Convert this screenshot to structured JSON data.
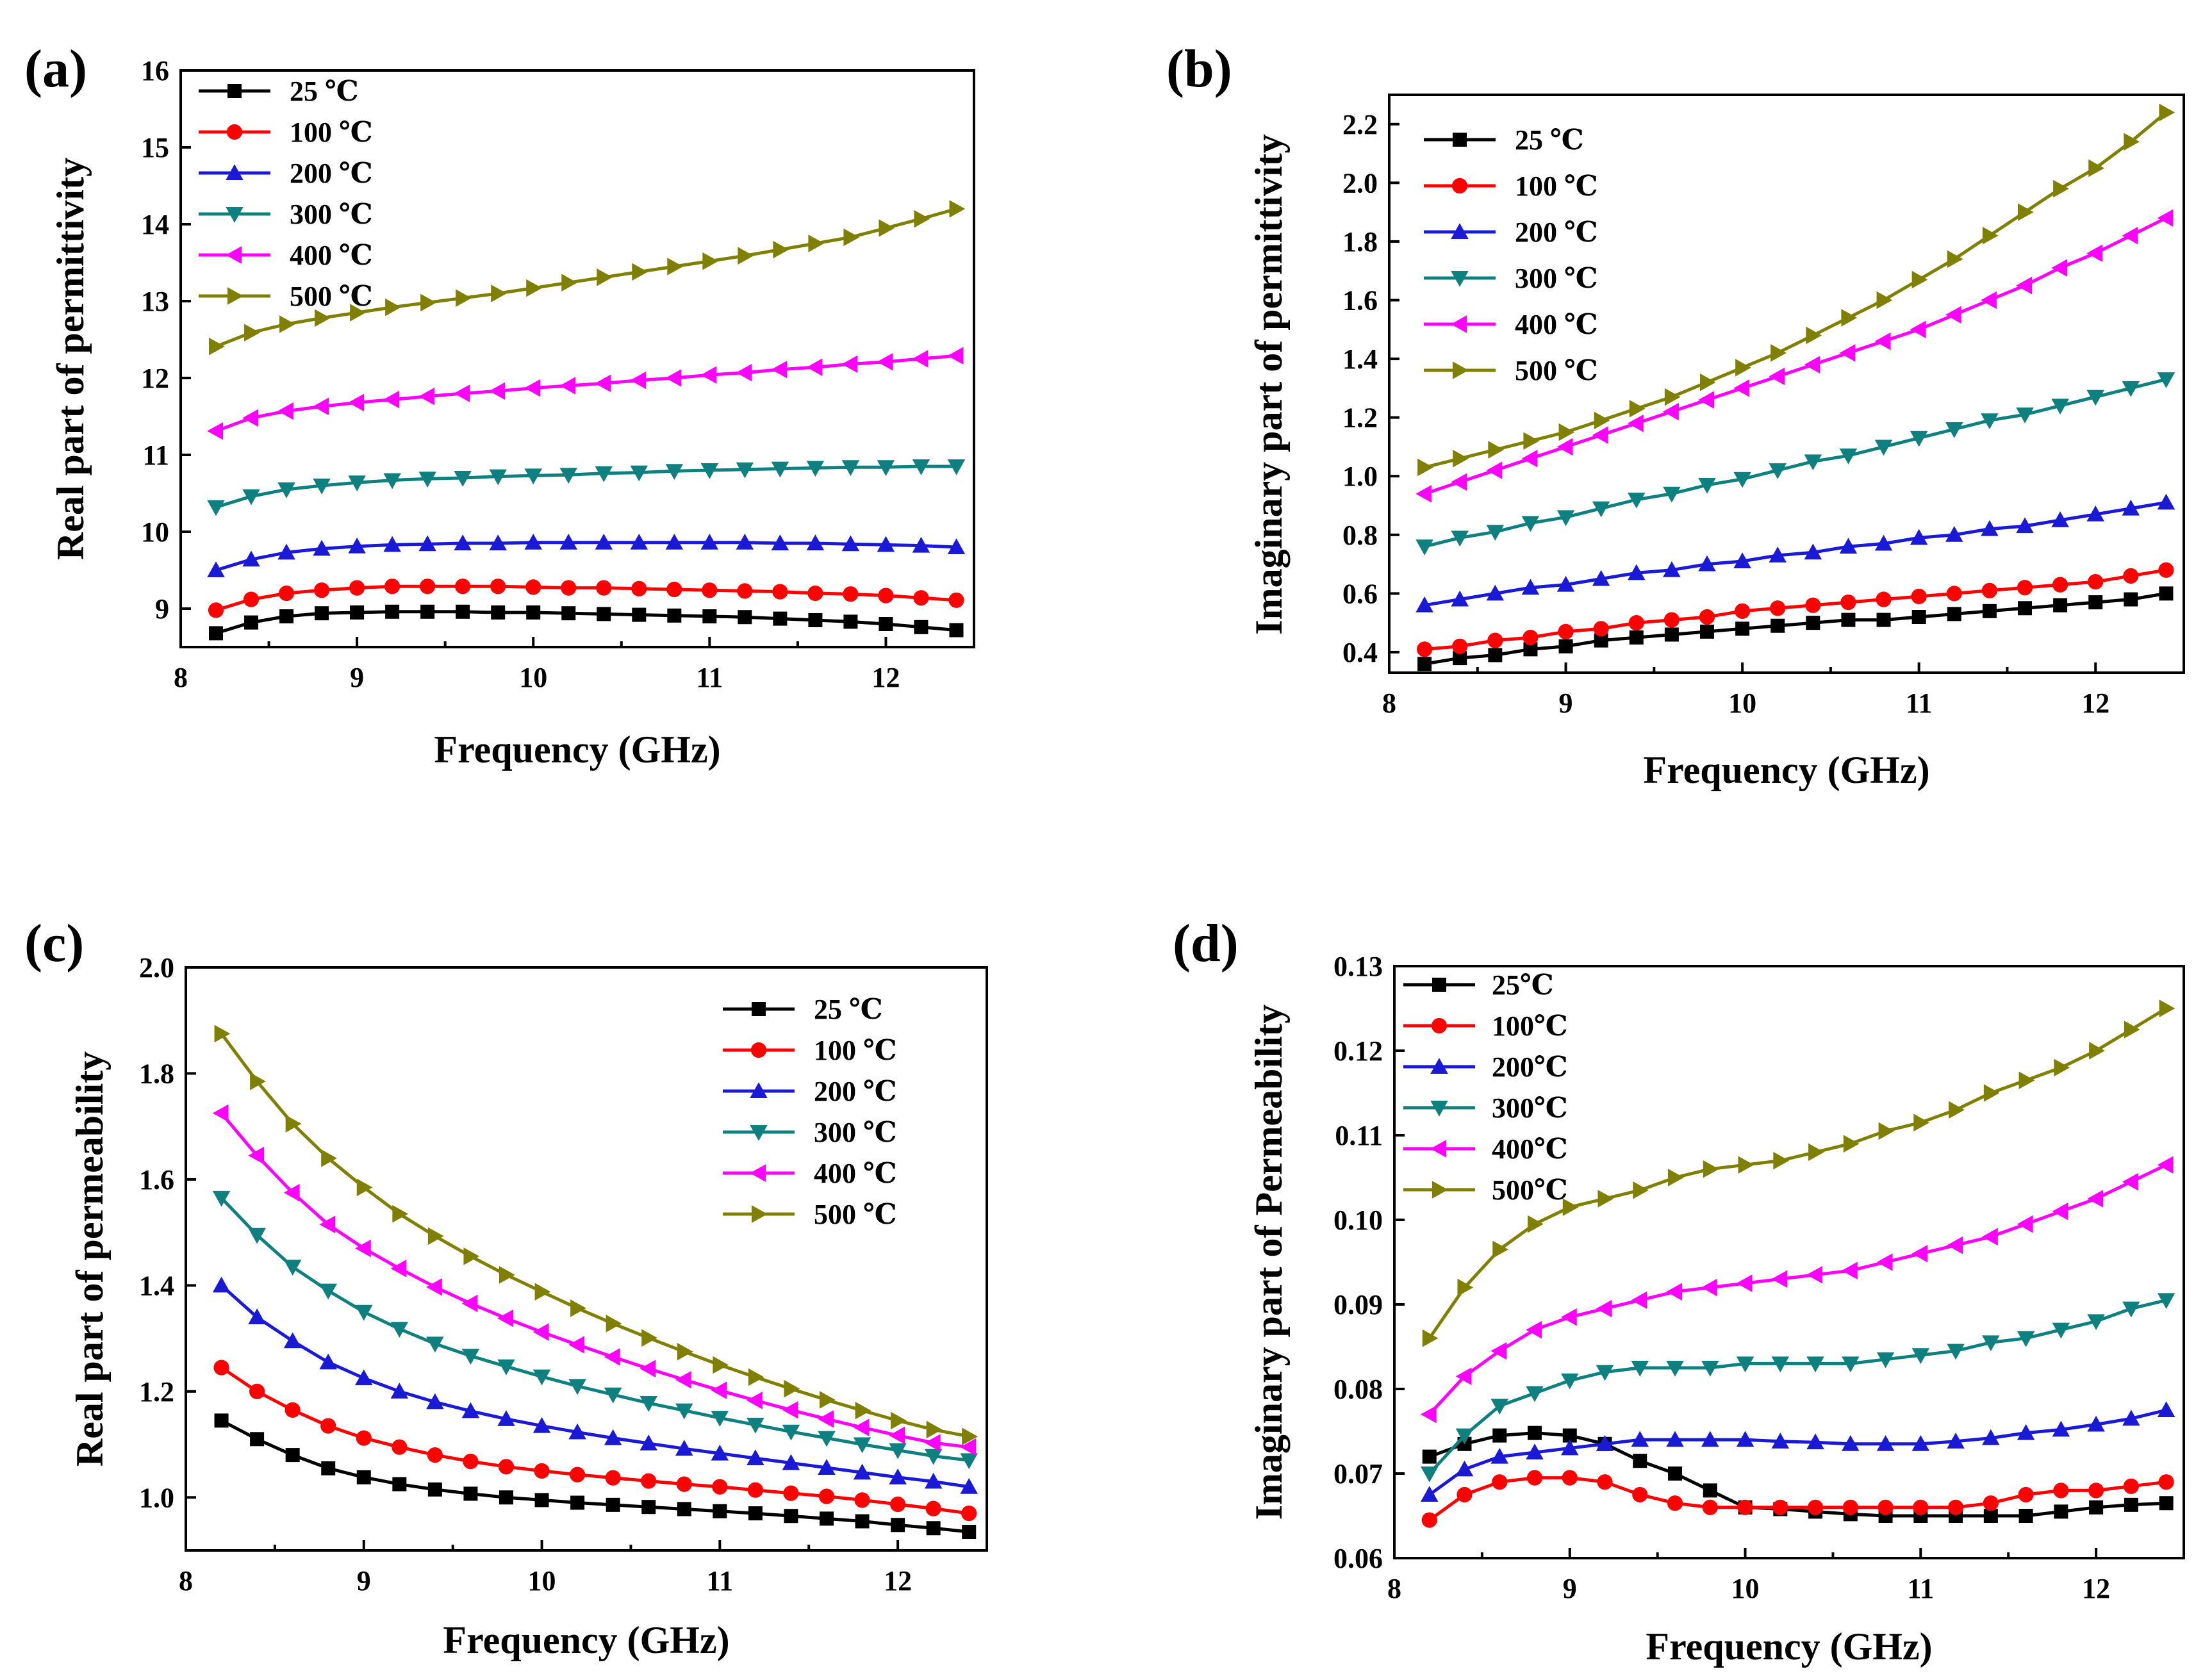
{
  "colors": {
    "25": "#000000",
    "100": "#ff0000",
    "200": "#1a1ad6",
    "300": "#0f8080",
    "400": "#ff00ff",
    "500": "#808000"
  },
  "chart_data": [
    {
      "panel_label": "(a)",
      "type": "line",
      "xlabel": "Frequency (GHz)",
      "ylabel": "Real part of permittivity",
      "xlim": [
        8,
        12.5
      ],
      "ylim": [
        8.5,
        16
      ],
      "xticks": [
        8,
        9,
        10,
        11,
        12
      ],
      "yticks": [
        9,
        10,
        11,
        12,
        13,
        14,
        15,
        16
      ],
      "ytick_labels": [
        "9",
        "10",
        "11",
        "12",
        "13",
        "14",
        "15",
        "16"
      ],
      "legend_position": "top-left",
      "x": [
        8.2,
        8.4,
        8.6,
        8.8,
        9.0,
        9.2,
        9.4,
        9.6,
        9.8,
        10.0,
        10.2,
        10.4,
        10.6,
        10.8,
        11.0,
        11.2,
        11.4,
        11.6,
        11.8,
        12.0,
        12.2,
        12.4
      ],
      "series": [
        {
          "name": "25 ℃",
          "marker": "square",
          "color_key": "25",
          "values": [
            8.68,
            8.82,
            8.9,
            8.94,
            8.95,
            8.96,
            8.96,
            8.96,
            8.95,
            8.95,
            8.94,
            8.93,
            8.92,
            8.91,
            8.9,
            8.89,
            8.87,
            8.85,
            8.83,
            8.8,
            8.76,
            8.72
          ]
        },
        {
          "name": "100 ℃",
          "marker": "circle",
          "color_key": "100",
          "values": [
            8.98,
            9.12,
            9.2,
            9.24,
            9.27,
            9.29,
            9.29,
            9.29,
            9.29,
            9.28,
            9.27,
            9.27,
            9.26,
            9.25,
            9.24,
            9.23,
            9.22,
            9.2,
            9.19,
            9.17,
            9.14,
            9.11
          ]
        },
        {
          "name": "200 ℃",
          "marker": "triangle-up",
          "color_key": "200",
          "values": [
            9.5,
            9.64,
            9.73,
            9.78,
            9.81,
            9.83,
            9.84,
            9.85,
            9.85,
            9.86,
            9.86,
            9.86,
            9.86,
            9.86,
            9.86,
            9.86,
            9.85,
            9.85,
            9.84,
            9.83,
            9.82,
            9.8
          ]
        },
        {
          "name": "300 ℃",
          "marker": "triangle-down",
          "color_key": "300",
          "values": [
            10.32,
            10.46,
            10.55,
            10.6,
            10.64,
            10.67,
            10.69,
            10.7,
            10.72,
            10.73,
            10.74,
            10.76,
            10.77,
            10.79,
            10.8,
            10.81,
            10.82,
            10.83,
            10.84,
            10.84,
            10.85,
            10.85
          ]
        },
        {
          "name": "400 ℃",
          "marker": "triangle-left",
          "color_key": "400",
          "values": [
            11.31,
            11.48,
            11.57,
            11.63,
            11.68,
            11.72,
            11.76,
            11.8,
            11.83,
            11.87,
            11.9,
            11.93,
            11.97,
            12.0,
            12.04,
            12.07,
            12.11,
            12.14,
            12.18,
            12.21,
            12.25,
            12.29
          ]
        },
        {
          "name": "500 ℃",
          "marker": "triangle-right",
          "color_key": "500",
          "values": [
            12.41,
            12.59,
            12.7,
            12.78,
            12.85,
            12.92,
            12.98,
            13.04,
            13.1,
            13.17,
            13.24,
            13.31,
            13.38,
            13.45,
            13.52,
            13.59,
            13.67,
            13.75,
            13.83,
            13.95,
            14.07,
            14.2
          ]
        }
      ]
    },
    {
      "panel_label": "(b)",
      "type": "line",
      "xlabel": "Frequency (GHz)",
      "ylabel": "Imaginary part of permittivity",
      "xlim": [
        8,
        12.5
      ],
      "ylim": [
        0.33,
        2.3
      ],
      "xticks": [
        8,
        9,
        10,
        11,
        12
      ],
      "yticks": [
        0.4,
        0.6,
        0.8,
        1.0,
        1.2,
        1.4,
        1.6,
        1.8,
        2.0,
        2.2
      ],
      "ytick_labels": [
        "0.4",
        "0.6",
        "0.8",
        "1.0",
        "1.2",
        "1.4",
        "1.6",
        "1.8",
        "2.0",
        "2.2"
      ],
      "legend_position": "top-left",
      "x": [
        8.2,
        8.4,
        8.6,
        8.8,
        9.0,
        9.2,
        9.4,
        9.6,
        9.8,
        10.0,
        10.2,
        10.4,
        10.6,
        10.8,
        11.0,
        11.2,
        11.4,
        11.6,
        11.8,
        12.0,
        12.2,
        12.4
      ],
      "series": [
        {
          "name": "25 ℃",
          "marker": "square",
          "color_key": "25",
          "values": [
            0.36,
            0.38,
            0.39,
            0.41,
            0.42,
            0.44,
            0.45,
            0.46,
            0.47,
            0.48,
            0.49,
            0.5,
            0.51,
            0.51,
            0.52,
            0.53,
            0.54,
            0.55,
            0.56,
            0.57,
            0.58,
            0.6
          ]
        },
        {
          "name": "100 ℃",
          "marker": "circle",
          "color_key": "100",
          "values": [
            0.41,
            0.42,
            0.44,
            0.45,
            0.47,
            0.48,
            0.5,
            0.51,
            0.52,
            0.54,
            0.55,
            0.56,
            0.57,
            0.58,
            0.59,
            0.6,
            0.61,
            0.62,
            0.63,
            0.64,
            0.66,
            0.68
          ]
        },
        {
          "name": "200 ℃",
          "marker": "triangle-up",
          "color_key": "200",
          "values": [
            0.56,
            0.58,
            0.6,
            0.62,
            0.63,
            0.65,
            0.67,
            0.68,
            0.7,
            0.71,
            0.73,
            0.74,
            0.76,
            0.77,
            0.79,
            0.8,
            0.82,
            0.83,
            0.85,
            0.87,
            0.89,
            0.91
          ]
        },
        {
          "name": "300 ℃",
          "marker": "triangle-down",
          "color_key": "300",
          "values": [
            0.76,
            0.79,
            0.81,
            0.84,
            0.86,
            0.89,
            0.92,
            0.94,
            0.97,
            0.99,
            1.02,
            1.05,
            1.07,
            1.1,
            1.13,
            1.16,
            1.19,
            1.21,
            1.24,
            1.27,
            1.3,
            1.33
          ]
        },
        {
          "name": "400 ℃",
          "marker": "triangle-left",
          "color_key": "400",
          "values": [
            0.94,
            0.98,
            1.02,
            1.06,
            1.1,
            1.14,
            1.18,
            1.22,
            1.26,
            1.3,
            1.34,
            1.38,
            1.42,
            1.46,
            1.5,
            1.55,
            1.6,
            1.65,
            1.71,
            1.76,
            1.82,
            1.88
          ]
        },
        {
          "name": "500 ℃",
          "marker": "triangle-right",
          "color_key": "500",
          "values": [
            1.03,
            1.06,
            1.09,
            1.12,
            1.15,
            1.19,
            1.23,
            1.27,
            1.32,
            1.37,
            1.42,
            1.48,
            1.54,
            1.6,
            1.67,
            1.74,
            1.82,
            1.9,
            1.98,
            2.05,
            2.14,
            2.24
          ]
        }
      ]
    },
    {
      "panel_label": "(c)",
      "type": "line",
      "xlabel": "Frequency (GHz)",
      "ylabel": "Real part of permeability",
      "xlim": [
        8,
        12.5
      ],
      "ylim": [
        0.9,
        2.0
      ],
      "xticks": [
        8,
        9,
        10,
        11,
        12
      ],
      "yticks": [
        1.0,
        1.2,
        1.4,
        1.6,
        1.8,
        2.0
      ],
      "ytick_labels": [
        "1.0",
        "1.2",
        "1.4",
        "1.6",
        "1.8",
        "2.0"
      ],
      "legend_position": "top-right",
      "x": [
        8.2,
        8.4,
        8.6,
        8.8,
        9.0,
        9.2,
        9.4,
        9.6,
        9.8,
        10.0,
        10.2,
        10.4,
        10.6,
        10.8,
        11.0,
        11.2,
        11.4,
        11.6,
        11.8,
        12.0,
        12.2,
        12.4
      ],
      "series": [
        {
          "name": "25 ℃",
          "marker": "square",
          "color_key": "25",
          "values": [
            1.145,
            1.11,
            1.08,
            1.055,
            1.038,
            1.025,
            1.015,
            1.007,
            1.0,
            0.995,
            0.99,
            0.986,
            0.982,
            0.978,
            0.974,
            0.97,
            0.965,
            0.96,
            0.955,
            0.948,
            0.942,
            0.935
          ]
        },
        {
          "name": "100 ℃",
          "marker": "circle",
          "color_key": "100",
          "values": [
            1.245,
            1.2,
            1.165,
            1.135,
            1.112,
            1.095,
            1.08,
            1.068,
            1.058,
            1.05,
            1.043,
            1.037,
            1.031,
            1.025,
            1.02,
            1.014,
            1.008,
            1.002,
            0.995,
            0.987,
            0.979,
            0.97
          ]
        },
        {
          "name": "200 ℃",
          "marker": "triangle-up",
          "color_key": "200",
          "values": [
            1.4,
            1.34,
            1.295,
            1.255,
            1.225,
            1.2,
            1.18,
            1.163,
            1.148,
            1.135,
            1.123,
            1.112,
            1.102,
            1.092,
            1.083,
            1.074,
            1.065,
            1.056,
            1.047,
            1.038,
            1.03,
            1.02
          ]
        },
        {
          "name": "300 ℃",
          "marker": "triangle-down",
          "color_key": "300",
          "values": [
            1.565,
            1.495,
            1.435,
            1.39,
            1.35,
            1.318,
            1.29,
            1.267,
            1.247,
            1.228,
            1.21,
            1.194,
            1.178,
            1.164,
            1.15,
            1.137,
            1.124,
            1.112,
            1.1,
            1.089,
            1.078,
            1.07
          ]
        },
        {
          "name": "400 ℃",
          "marker": "triangle-left",
          "color_key": "400",
          "values": [
            1.725,
            1.645,
            1.575,
            1.515,
            1.47,
            1.432,
            1.397,
            1.366,
            1.338,
            1.312,
            1.288,
            1.265,
            1.243,
            1.222,
            1.202,
            1.183,
            1.165,
            1.148,
            1.132,
            1.117,
            1.103,
            1.095
          ]
        },
        {
          "name": "500 ℃",
          "marker": "triangle-right",
          "color_key": "500",
          "values": [
            1.875,
            1.785,
            1.705,
            1.64,
            1.585,
            1.535,
            1.493,
            1.455,
            1.42,
            1.388,
            1.357,
            1.328,
            1.301,
            1.275,
            1.25,
            1.227,
            1.205,
            1.184,
            1.164,
            1.145,
            1.128,
            1.115
          ]
        }
      ]
    },
    {
      "panel_label": "(d)",
      "type": "line",
      "xlabel": "Frequency (GHz)",
      "ylabel": "Imaginary part of Permeability",
      "xlim": [
        8,
        12.5
      ],
      "ylim": [
        0.06,
        0.13
      ],
      "xticks": [
        8,
        9,
        10,
        11,
        12
      ],
      "yticks": [
        0.06,
        0.07,
        0.08,
        0.09,
        0.1,
        0.11,
        0.12,
        0.13
      ],
      "ytick_labels": [
        "0.06",
        "0.07",
        "0.08",
        "0.09",
        "0.10",
        "0.11",
        "0.12",
        "0.13"
      ],
      "legend_position": "top-left",
      "x": [
        8.2,
        8.4,
        8.6,
        8.8,
        9.0,
        9.2,
        9.4,
        9.6,
        9.8,
        10.0,
        10.2,
        10.4,
        10.6,
        10.8,
        11.0,
        11.2,
        11.4,
        11.6,
        11.8,
        12.0,
        12.2,
        12.4
      ],
      "series": [
        {
          "name": "25℃",
          "marker": "square",
          "color_key": "25",
          "values": [
            0.072,
            0.0735,
            0.0745,
            0.0748,
            0.0745,
            0.0735,
            0.0715,
            0.07,
            0.068,
            0.066,
            0.0658,
            0.0655,
            0.0652,
            0.065,
            0.065,
            0.065,
            0.065,
            0.065,
            0.0655,
            0.066,
            0.0663,
            0.0665
          ]
        },
        {
          "name": "100℃",
          "marker": "circle",
          "color_key": "100",
          "values": [
            0.0645,
            0.0675,
            0.069,
            0.0695,
            0.0695,
            0.069,
            0.0675,
            0.0665,
            0.066,
            0.066,
            0.066,
            0.066,
            0.066,
            0.066,
            0.066,
            0.066,
            0.0665,
            0.0675,
            0.068,
            0.068,
            0.0685,
            0.069
          ]
        },
        {
          "name": "200℃",
          "marker": "triangle-up",
          "color_key": "200",
          "values": [
            0.0675,
            0.0705,
            0.072,
            0.0725,
            0.073,
            0.0735,
            0.074,
            0.074,
            0.074,
            0.074,
            0.0738,
            0.0737,
            0.0735,
            0.0735,
            0.0735,
            0.0738,
            0.0742,
            0.0748,
            0.0752,
            0.0758,
            0.0765,
            0.0775
          ]
        },
        {
          "name": "300℃",
          "marker": "triangle-down",
          "color_key": "300",
          "values": [
            0.07,
            0.0745,
            0.078,
            0.0795,
            0.081,
            0.082,
            0.0825,
            0.0825,
            0.0825,
            0.083,
            0.083,
            0.083,
            0.083,
            0.0835,
            0.084,
            0.0845,
            0.0855,
            0.086,
            0.087,
            0.088,
            0.0895,
            0.0905
          ]
        },
        {
          "name": "400℃",
          "marker": "triangle-left",
          "color_key": "400",
          "values": [
            0.077,
            0.0815,
            0.0845,
            0.087,
            0.0885,
            0.0895,
            0.0905,
            0.0915,
            0.092,
            0.0925,
            0.093,
            0.0935,
            0.094,
            0.095,
            0.096,
            0.097,
            0.098,
            0.0995,
            0.101,
            0.1025,
            0.1045,
            0.1065
          ]
        },
        {
          "name": "500℃",
          "marker": "triangle-right",
          "color_key": "500",
          "values": [
            0.086,
            0.092,
            0.0965,
            0.0995,
            0.1015,
            0.1025,
            0.1035,
            0.105,
            0.106,
            0.1065,
            0.107,
            0.108,
            0.109,
            0.1105,
            0.1115,
            0.113,
            0.115,
            0.1165,
            0.118,
            0.12,
            0.1225,
            0.125
          ]
        }
      ]
    }
  ]
}
